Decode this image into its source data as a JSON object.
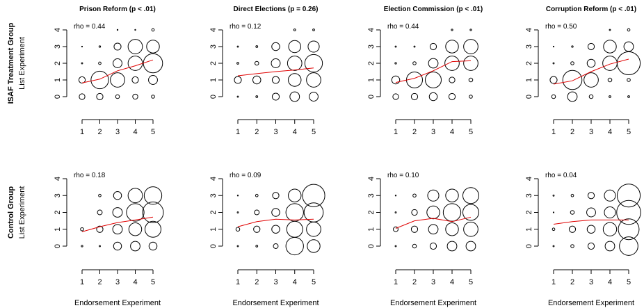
{
  "chart_data": [
    {
      "type": "scatter",
      "row": 0,
      "col": 0,
      "title": "Prison Reform (p < .01)",
      "rho_label": "rho =  0.44",
      "xlabel": "",
      "ylabel": "List Experiment",
      "row_label": "ISAF Treatment Group",
      "x_ticks": [
        1,
        2,
        3,
        4,
        5
      ],
      "y_ticks": [
        0,
        1,
        2,
        3,
        4
      ],
      "xlim": [
        1,
        5
      ],
      "ylim": [
        0,
        4
      ],
      "points": [
        {
          "x": 1,
          "y": 0,
          "size": 0.18
        },
        {
          "x": 1,
          "y": 1,
          "size": 0.2
        },
        {
          "x": 1,
          "y": 2,
          "size": 0.04
        },
        {
          "x": 1,
          "y": 3,
          "size": 0.02
        },
        {
          "x": 2,
          "y": 0,
          "size": 0.2
        },
        {
          "x": 2,
          "y": 1,
          "size": 0.55
        },
        {
          "x": 2,
          "y": 2,
          "size": 0.08
        },
        {
          "x": 2,
          "y": 3,
          "size": 0.05
        },
        {
          "x": 3,
          "y": 0,
          "size": 0.12
        },
        {
          "x": 3,
          "y": 1,
          "size": 0.45
        },
        {
          "x": 3,
          "y": 2,
          "size": 0.28
        },
        {
          "x": 3,
          "y": 3,
          "size": 0.22
        },
        {
          "x": 3,
          "y": 4,
          "size": 0.03
        },
        {
          "x": 4,
          "y": 0,
          "size": 0.16
        },
        {
          "x": 4,
          "y": 1,
          "size": 0.2
        },
        {
          "x": 4,
          "y": 2,
          "size": 0.45
        },
        {
          "x": 4,
          "y": 3,
          "size": 0.45
        },
        {
          "x": 4,
          "y": 4,
          "size": 0.03
        },
        {
          "x": 5,
          "y": 0,
          "size": 0.1
        },
        {
          "x": 5,
          "y": 1,
          "size": 0.28
        },
        {
          "x": 5,
          "y": 2,
          "size": 0.6
        },
        {
          "x": 5,
          "y": 3,
          "size": 0.4
        },
        {
          "x": 5,
          "y": 4,
          "size": 0.08
        }
      ],
      "trend": [
        {
          "x": 1,
          "y": 0.82
        },
        {
          "x": 2,
          "y": 1.05
        },
        {
          "x": 3,
          "y": 1.55
        },
        {
          "x": 4,
          "y": 1.85
        },
        {
          "x": 5,
          "y": 2.2
        }
      ]
    },
    {
      "type": "scatter",
      "row": 0,
      "col": 1,
      "title": "Direct Elections (p = 0.26)",
      "rho_label": "rho =  0.12",
      "xlabel": "",
      "ylabel": "",
      "x_ticks": [
        1,
        2,
        3,
        4,
        5
      ],
      "y_ticks": [
        0,
        1,
        2,
        3,
        4
      ],
      "xlim": [
        1,
        5
      ],
      "ylim": [
        0,
        4
      ],
      "points": [
        {
          "x": 1,
          "y": 0,
          "size": 0.04
        },
        {
          "x": 1,
          "y": 1,
          "size": 0.22
        },
        {
          "x": 1,
          "y": 2,
          "size": 0.06
        },
        {
          "x": 1,
          "y": 3,
          "size": 0.04
        },
        {
          "x": 2,
          "y": 0,
          "size": 0.06
        },
        {
          "x": 2,
          "y": 1,
          "size": 0.25
        },
        {
          "x": 2,
          "y": 2,
          "size": 0.12
        },
        {
          "x": 2,
          "y": 3,
          "size": 0.06
        },
        {
          "x": 3,
          "y": 0,
          "size": 0.22
        },
        {
          "x": 3,
          "y": 1,
          "size": 0.22
        },
        {
          "x": 3,
          "y": 2,
          "size": 0.28
        },
        {
          "x": 3,
          "y": 3,
          "size": 0.25
        },
        {
          "x": 4,
          "y": 0,
          "size": 0.3
        },
        {
          "x": 4,
          "y": 1,
          "size": 0.4
        },
        {
          "x": 4,
          "y": 2,
          "size": 0.45
        },
        {
          "x": 4,
          "y": 3,
          "size": 0.38
        },
        {
          "x": 4,
          "y": 4,
          "size": 0.06
        },
        {
          "x": 5,
          "y": 0,
          "size": 0.28
        },
        {
          "x": 5,
          "y": 1,
          "size": 0.45
        },
        {
          "x": 5,
          "y": 2,
          "size": 0.55
        },
        {
          "x": 5,
          "y": 3,
          "size": 0.35
        },
        {
          "x": 5,
          "y": 4,
          "size": 0.06
        }
      ],
      "trend": [
        {
          "x": 1,
          "y": 1.25
        },
        {
          "x": 2,
          "y": 1.38
        },
        {
          "x": 3,
          "y": 1.5
        },
        {
          "x": 4,
          "y": 1.6
        },
        {
          "x": 5,
          "y": 1.72
        }
      ]
    },
    {
      "type": "scatter",
      "row": 0,
      "col": 2,
      "title": "Election Commission (p < .01)",
      "rho_label": "rho =  0.44",
      "xlabel": "",
      "ylabel": "",
      "x_ticks": [
        1,
        2,
        3,
        4,
        5
      ],
      "y_ticks": [
        0,
        1,
        2,
        3,
        4
      ],
      "xlim": [
        1,
        5
      ],
      "ylim": [
        0,
        4
      ],
      "points": [
        {
          "x": 1,
          "y": 0,
          "size": 0.18
        },
        {
          "x": 1,
          "y": 1,
          "size": 0.25
        },
        {
          "x": 1,
          "y": 2,
          "size": 0.05
        },
        {
          "x": 1,
          "y": 3,
          "size": 0.04
        },
        {
          "x": 2,
          "y": 0,
          "size": 0.2
        },
        {
          "x": 2,
          "y": 1,
          "size": 0.5
        },
        {
          "x": 2,
          "y": 2,
          "size": 0.1
        },
        {
          "x": 2,
          "y": 3,
          "size": 0.04
        },
        {
          "x": 3,
          "y": 0,
          "size": 0.25
        },
        {
          "x": 3,
          "y": 1,
          "size": 0.5
        },
        {
          "x": 3,
          "y": 2,
          "size": 0.3
        },
        {
          "x": 3,
          "y": 3,
          "size": 0.2
        },
        {
          "x": 4,
          "y": 0,
          "size": 0.2
        },
        {
          "x": 4,
          "y": 1,
          "size": 0.18
        },
        {
          "x": 4,
          "y": 2,
          "size": 0.45
        },
        {
          "x": 4,
          "y": 3,
          "size": 0.4
        },
        {
          "x": 4,
          "y": 4,
          "size": 0.05
        },
        {
          "x": 5,
          "y": 0,
          "size": 0.1
        },
        {
          "x": 5,
          "y": 1,
          "size": 0.12
        },
        {
          "x": 5,
          "y": 2,
          "size": 0.45
        },
        {
          "x": 5,
          "y": 3,
          "size": 0.45
        },
        {
          "x": 5,
          "y": 4,
          "size": 0.05
        }
      ],
      "trend": [
        {
          "x": 1,
          "y": 0.85
        },
        {
          "x": 2,
          "y": 1.1
        },
        {
          "x": 3,
          "y": 1.55
        },
        {
          "x": 4,
          "y": 2.1
        },
        {
          "x": 5,
          "y": 2.15
        }
      ]
    },
    {
      "type": "scatter",
      "row": 0,
      "col": 3,
      "title": "Corruption Reform (p < .01)",
      "rho_label": "rho =  0.50",
      "xlabel": "",
      "ylabel": "",
      "x_ticks": [
        1,
        2,
        3,
        4,
        5
      ],
      "y_ticks": [
        0,
        1,
        2,
        3,
        4
      ],
      "xlim": [
        1,
        5
      ],
      "ylim": [
        0,
        4
      ],
      "points": [
        {
          "x": 1,
          "y": 0,
          "size": 0.12
        },
        {
          "x": 1,
          "y": 1,
          "size": 0.22
        },
        {
          "x": 1,
          "y": 2,
          "size": 0.04
        },
        {
          "x": 1,
          "y": 3,
          "size": 0.02
        },
        {
          "x": 2,
          "y": 0,
          "size": 0.3
        },
        {
          "x": 2,
          "y": 1,
          "size": 0.6
        },
        {
          "x": 2,
          "y": 2,
          "size": 0.1
        },
        {
          "x": 2,
          "y": 3,
          "size": 0.05
        },
        {
          "x": 3,
          "y": 0,
          "size": 0.12
        },
        {
          "x": 3,
          "y": 1,
          "size": 0.45
        },
        {
          "x": 3,
          "y": 2,
          "size": 0.25
        },
        {
          "x": 3,
          "y": 3,
          "size": 0.2
        },
        {
          "x": 4,
          "y": 0,
          "size": 0.06
        },
        {
          "x": 4,
          "y": 1,
          "size": 0.12
        },
        {
          "x": 4,
          "y": 2,
          "size": 0.45
        },
        {
          "x": 4,
          "y": 3,
          "size": 0.4
        },
        {
          "x": 4,
          "y": 4,
          "size": 0.04
        },
        {
          "x": 5,
          "y": 0,
          "size": 0.06
        },
        {
          "x": 5,
          "y": 1,
          "size": 0.1
        },
        {
          "x": 5,
          "y": 2,
          "size": 0.72
        },
        {
          "x": 5,
          "y": 3,
          "size": 0.3
        },
        {
          "x": 5,
          "y": 4,
          "size": 0.08
        }
      ],
      "trend": [
        {
          "x": 1,
          "y": 0.75
        },
        {
          "x": 2,
          "y": 0.95
        },
        {
          "x": 3,
          "y": 1.5
        },
        {
          "x": 4,
          "y": 1.95
        },
        {
          "x": 5,
          "y": 2.25
        }
      ]
    },
    {
      "type": "scatter",
      "row": 1,
      "col": 0,
      "title": "",
      "rho_label": "rho =  0.18",
      "xlabel": "Endorsement Experiment",
      "ylabel": "List Experiment",
      "row_label": "Control Group",
      "x_ticks": [
        1,
        2,
        3,
        4,
        5
      ],
      "y_ticks": [
        0,
        1,
        2,
        3,
        4
      ],
      "xlim": [
        1,
        5
      ],
      "ylim": [
        0,
        4
      ],
      "points": [
        {
          "x": 1,
          "y": 0,
          "size": 0.05
        },
        {
          "x": 1,
          "y": 1,
          "size": 0.1
        },
        {
          "x": 2,
          "y": 0,
          "size": 0.04
        },
        {
          "x": 2,
          "y": 1,
          "size": 0.2
        },
        {
          "x": 2,
          "y": 2,
          "size": 0.15
        },
        {
          "x": 2,
          "y": 3,
          "size": 0.08
        },
        {
          "x": 3,
          "y": 0,
          "size": 0.25
        },
        {
          "x": 3,
          "y": 1,
          "size": 0.3
        },
        {
          "x": 3,
          "y": 2,
          "size": 0.3
        },
        {
          "x": 3,
          "y": 3,
          "size": 0.25
        },
        {
          "x": 4,
          "y": 0,
          "size": 0.3
        },
        {
          "x": 4,
          "y": 1,
          "size": 0.4
        },
        {
          "x": 4,
          "y": 2,
          "size": 0.55
        },
        {
          "x": 4,
          "y": 3,
          "size": 0.45
        },
        {
          "x": 5,
          "y": 0,
          "size": 0.25
        },
        {
          "x": 5,
          "y": 1,
          "size": 0.5
        },
        {
          "x": 5,
          "y": 2,
          "size": 0.65
        },
        {
          "x": 5,
          "y": 3,
          "size": 0.55
        }
      ],
      "trend": [
        {
          "x": 1,
          "y": 0.85
        },
        {
          "x": 2,
          "y": 1.15
        },
        {
          "x": 3,
          "y": 1.4
        },
        {
          "x": 4,
          "y": 1.55
        },
        {
          "x": 5,
          "y": 1.72
        }
      ]
    },
    {
      "type": "scatter",
      "row": 1,
      "col": 1,
      "title": "",
      "rho_label": "rho =  0.09",
      "xlabel": "Endorsement Experiment",
      "ylabel": "",
      "x_ticks": [
        1,
        2,
        3,
        4,
        5
      ],
      "y_ticks": [
        0,
        1,
        2,
        3,
        4
      ],
      "xlim": [
        1,
        5
      ],
      "ylim": [
        0,
        4
      ],
      "points": [
        {
          "x": 1,
          "y": 0,
          "size": 0.04
        },
        {
          "x": 1,
          "y": 1,
          "size": 0.12
        },
        {
          "x": 1,
          "y": 2,
          "size": 0.04
        },
        {
          "x": 1,
          "y": 3,
          "size": 0.03
        },
        {
          "x": 2,
          "y": 0,
          "size": 0.06
        },
        {
          "x": 2,
          "y": 1,
          "size": 0.2
        },
        {
          "x": 2,
          "y": 2,
          "size": 0.15
        },
        {
          "x": 2,
          "y": 3,
          "size": 0.08
        },
        {
          "x": 3,
          "y": 0,
          "size": 0.15
        },
        {
          "x": 3,
          "y": 1,
          "size": 0.25
        },
        {
          "x": 3,
          "y": 2,
          "size": 0.25
        },
        {
          "x": 3,
          "y": 3,
          "size": 0.2
        },
        {
          "x": 4,
          "y": 0,
          "size": 0.55
        },
        {
          "x": 4,
          "y": 1,
          "size": 0.5
        },
        {
          "x": 4,
          "y": 2,
          "size": 0.55
        },
        {
          "x": 4,
          "y": 3,
          "size": 0.4
        },
        {
          "x": 5,
          "y": 0,
          "size": 0.4
        },
        {
          "x": 5,
          "y": 1,
          "size": 0.45
        },
        {
          "x": 5,
          "y": 2,
          "size": 0.6
        },
        {
          "x": 5,
          "y": 3,
          "size": 0.7
        }
      ],
      "trend": [
        {
          "x": 1,
          "y": 1.15
        },
        {
          "x": 2,
          "y": 1.45
        },
        {
          "x": 3,
          "y": 1.6
        },
        {
          "x": 4,
          "y": 1.55
        },
        {
          "x": 5,
          "y": 1.6
        }
      ]
    },
    {
      "type": "scatter",
      "row": 1,
      "col": 2,
      "title": "",
      "rho_label": "rho =  0.10",
      "xlabel": "Endorsement Experiment",
      "ylabel": "",
      "x_ticks": [
        1,
        2,
        3,
        4,
        5
      ],
      "y_ticks": [
        0,
        1,
        2,
        3,
        4
      ],
      "xlim": [
        1,
        5
      ],
      "ylim": [
        0,
        4
      ],
      "points": [
        {
          "x": 1,
          "y": 0,
          "size": 0.04
        },
        {
          "x": 1,
          "y": 1,
          "size": 0.15
        },
        {
          "x": 1,
          "y": 2,
          "size": 0.04
        },
        {
          "x": 1,
          "y": 3,
          "size": 0.03
        },
        {
          "x": 2,
          "y": 0,
          "size": 0.12
        },
        {
          "x": 2,
          "y": 1,
          "size": 0.2
        },
        {
          "x": 2,
          "y": 2,
          "size": 0.18
        },
        {
          "x": 2,
          "y": 3,
          "size": 0.1
        },
        {
          "x": 3,
          "y": 0,
          "size": 0.2
        },
        {
          "x": 3,
          "y": 1,
          "size": 0.3
        },
        {
          "x": 3,
          "y": 2,
          "size": 0.4
        },
        {
          "x": 3,
          "y": 3,
          "size": 0.35
        },
        {
          "x": 4,
          "y": 0,
          "size": 0.3
        },
        {
          "x": 4,
          "y": 1,
          "size": 0.4
        },
        {
          "x": 4,
          "y": 2,
          "size": 0.55
        },
        {
          "x": 4,
          "y": 3,
          "size": 0.4
        },
        {
          "x": 5,
          "y": 0,
          "size": 0.3
        },
        {
          "x": 5,
          "y": 1,
          "size": 0.45
        },
        {
          "x": 5,
          "y": 2,
          "size": 0.5
        },
        {
          "x": 5,
          "y": 3,
          "size": 0.5
        }
      ],
      "trend": [
        {
          "x": 1,
          "y": 1.05
        },
        {
          "x": 2,
          "y": 1.5
        },
        {
          "x": 3,
          "y": 1.65
        },
        {
          "x": 4,
          "y": 1.45
        },
        {
          "x": 5,
          "y": 1.72
        }
      ]
    },
    {
      "type": "scatter",
      "row": 1,
      "col": 3,
      "title": "",
      "rho_label": "rho =  0.04",
      "xlabel": "Endorsement Experiment",
      "ylabel": "",
      "x_ticks": [
        1,
        2,
        3,
        4,
        5
      ],
      "y_ticks": [
        0,
        1,
        2,
        3,
        4
      ],
      "xlim": [
        1,
        5
      ],
      "ylim": [
        0,
        4
      ],
      "points": [
        {
          "x": 1,
          "y": 0,
          "size": 0.04
        },
        {
          "x": 1,
          "y": 1,
          "size": 0.08
        },
        {
          "x": 1,
          "y": 2,
          "size": 0.02
        },
        {
          "x": 1,
          "y": 3,
          "size": 0.04
        },
        {
          "x": 2,
          "y": 0,
          "size": 0.1
        },
        {
          "x": 2,
          "y": 1,
          "size": 0.2
        },
        {
          "x": 2,
          "y": 2,
          "size": 0.12
        },
        {
          "x": 2,
          "y": 3,
          "size": 0.08
        },
        {
          "x": 3,
          "y": 0,
          "size": 0.2
        },
        {
          "x": 3,
          "y": 1,
          "size": 0.25
        },
        {
          "x": 3,
          "y": 2,
          "size": 0.28
        },
        {
          "x": 3,
          "y": 3,
          "size": 0.2
        },
        {
          "x": 4,
          "y": 0,
          "size": 0.3
        },
        {
          "x": 4,
          "y": 1,
          "size": 0.42
        },
        {
          "x": 4,
          "y": 2,
          "size": 0.35
        },
        {
          "x": 4,
          "y": 3,
          "size": 0.35
        },
        {
          "x": 5,
          "y": 0,
          "size": 0.58
        },
        {
          "x": 5,
          "y": 1,
          "size": 0.65
        },
        {
          "x": 5,
          "y": 2,
          "size": 0.75
        },
        {
          "x": 5,
          "y": 3,
          "size": 0.72
        }
      ],
      "trend": [
        {
          "x": 1,
          "y": 1.3
        },
        {
          "x": 2,
          "y": 1.45
        },
        {
          "x": 3,
          "y": 1.55
        },
        {
          "x": 4,
          "y": 1.55
        },
        {
          "x": 5,
          "y": 1.55
        }
      ]
    }
  ],
  "colors": {
    "trend_line": "#e00000",
    "circles": "#000000",
    "axes": "#000000"
  }
}
